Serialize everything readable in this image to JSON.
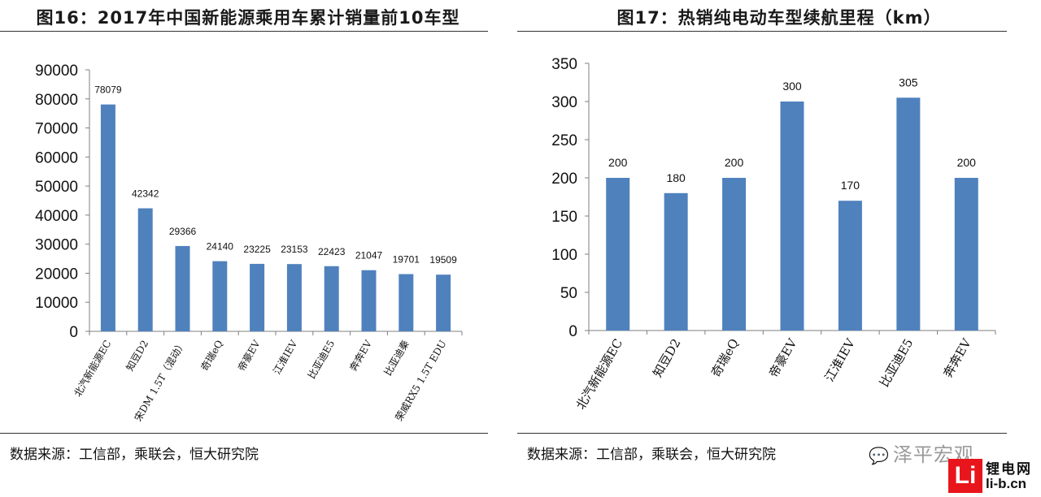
{
  "chart_data": [
    {
      "type": "bar",
      "title": "图16：2017年中国新能源乘用车累计销量前10车型",
      "categories": [
        "北汽新能源EC",
        "知豆D2",
        "宋DM 1.5T（混动）",
        "奇瑞eQ",
        "帝豪EV",
        "江淮IEV",
        "比亚迪E5",
        "奔奔EV",
        "比亚迪秦",
        "荣威RX5 1.5T EDU"
      ],
      "values": [
        78079,
        42342,
        29366,
        24140,
        23225,
        23153,
        22423,
        21047,
        19701,
        19509
      ],
      "ylim": [
        0,
        90000
      ],
      "yticks": [
        0,
        10000,
        20000,
        30000,
        40000,
        50000,
        60000,
        70000,
        80000,
        90000
      ],
      "xlabel": "",
      "ylabel": "",
      "color": "#4F81BD",
      "source": "数据来源：工信部，乘联会，恒大研究院"
    },
    {
      "type": "bar",
      "title": "图17：热销纯电动车型续航里程（km）",
      "categories": [
        "北汽新能源EC",
        "知豆D2",
        "奇瑞eQ",
        "帝豪EV",
        "江淮IEV",
        "比亚迪E5",
        "奔奔EV"
      ],
      "values": [
        200,
        180,
        200,
        300,
        170,
        305,
        200
      ],
      "ylim": [
        0,
        350
      ],
      "yticks": [
        0,
        50,
        100,
        150,
        200,
        250,
        300,
        350
      ],
      "xlabel": "",
      "ylabel": "",
      "color": "#4F81BD",
      "source": "数据来源：工信部，乘联会，恒大研究院"
    }
  ],
  "watermarks": {
    "wechat": "泽平宏观",
    "site_name": "锂电网",
    "site_url": "li-b.cn",
    "logo_letters": "Li"
  }
}
